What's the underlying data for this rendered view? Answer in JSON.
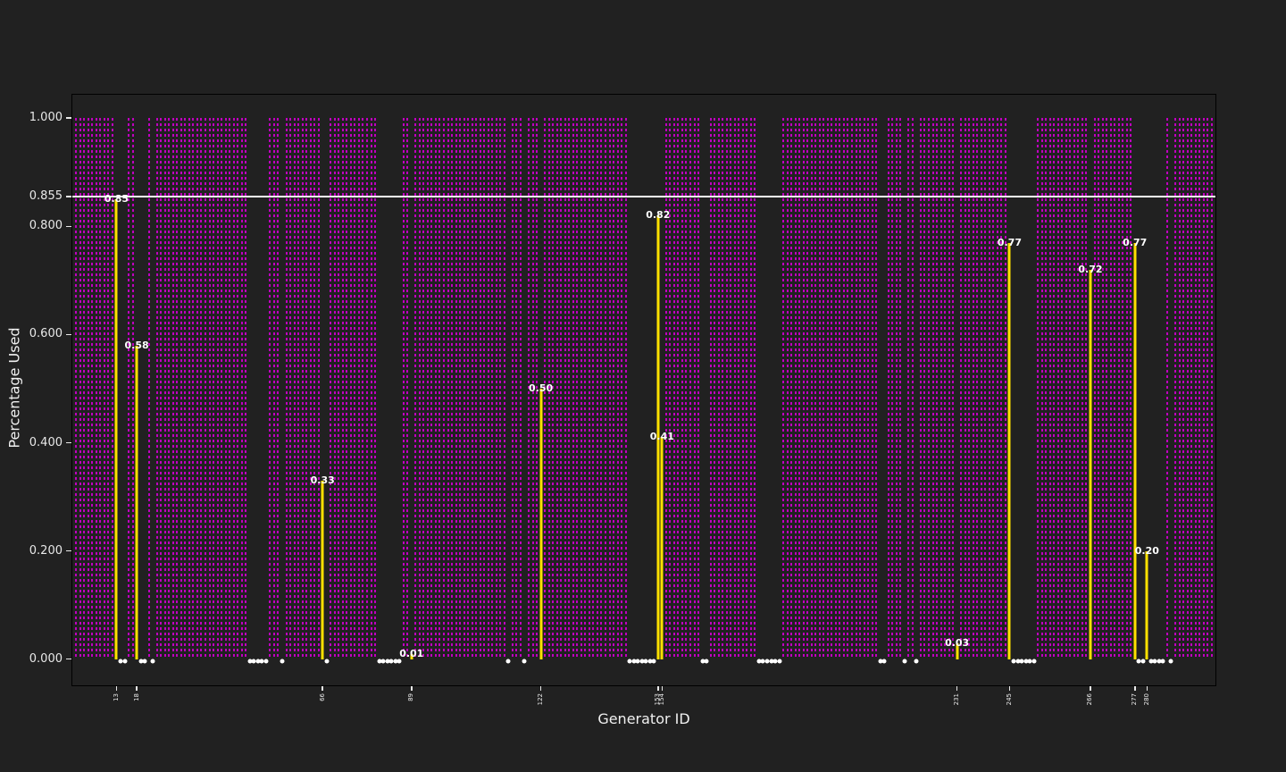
{
  "chart_data": {
    "type": "stem",
    "title": "",
    "xlabel": "Generator ID",
    "ylabel": "Percentage Used",
    "ylim": [
      -0.05,
      1.045
    ],
    "grid": false,
    "yticks": [
      {
        "value": 1.0,
        "label": "1.000"
      },
      {
        "value": 0.855,
        "label": "0.855"
      },
      {
        "value": 0.8,
        "label": "0.800"
      },
      {
        "value": 0.6,
        "label": "0.600"
      },
      {
        "value": 0.4,
        "label": "0.400"
      },
      {
        "value": 0.2,
        "label": "0.200"
      },
      {
        "value": 0.0,
        "label": "0.000"
      }
    ],
    "threshold": {
      "value": 0.855,
      "label": "0.855"
    },
    "full_usage_value": 1.0,
    "zero_usage_value": 0.0,
    "slot_pattern": "PPPPPPPPPPYDDPPYDDPDPPPPPPPPPPPPPPPPPPPPPPPDDDDDPPPDPPPPPPPPPYDPPPPPPPPPPPPDDDDDDPPYPPPPPPPPPPPPPPPPPPPPPPPDPPPDPPPYPPPPPPPPPPPPPPPPPPPPPDDDDDDDYYPPPPPPPPPDDPPPPPPPPPPPPDDDDDDPPPPPPPPPPPPPPPPPPPPPPPPDDPPPPDPPDPPPPPPPPPYPPPPPPPPPPPPYDDDDDDPPPPPPPPPPPPPYPPPPPPPPPPYDDYDDDDPDPPPPPPPPPP",
    "partial_bars": [
      {
        "id": "13",
        "value": 0.85,
        "label": "0.85"
      },
      {
        "id": "18",
        "value": 0.58,
        "label": "0.58"
      },
      {
        "id": "66",
        "value": 0.33,
        "label": "0.33"
      },
      {
        "id": "89",
        "value": 0.01,
        "label": "0.01"
      },
      {
        "id": "122",
        "value": 0.5,
        "label": "0.50"
      },
      {
        "id": "153",
        "value": 0.82,
        "label": "0.82"
      },
      {
        "id": "154",
        "value": 0.41,
        "label": "0.41"
      },
      {
        "id": "231",
        "value": 0.03,
        "label": "0.03"
      },
      {
        "id": "245",
        "value": 0.77,
        "label": "0.77"
      },
      {
        "id": "266",
        "value": 0.72,
        "label": "0.72"
      },
      {
        "id": "277",
        "value": 0.77,
        "label": "0.77"
      },
      {
        "id": "280",
        "value": 0.2,
        "label": "0.20"
      }
    ],
    "colors": {
      "background": "#212121",
      "spine": "#000000",
      "full_line": "#bf00bf",
      "partial_bar": "#ffe100",
      "zero_marker": "#ffffff",
      "threshold_line": "#ffffff",
      "tick_text": "#e8e8e8",
      "axis_label_text": "#f0f0f0",
      "value_label_text": "#ffffff"
    }
  }
}
